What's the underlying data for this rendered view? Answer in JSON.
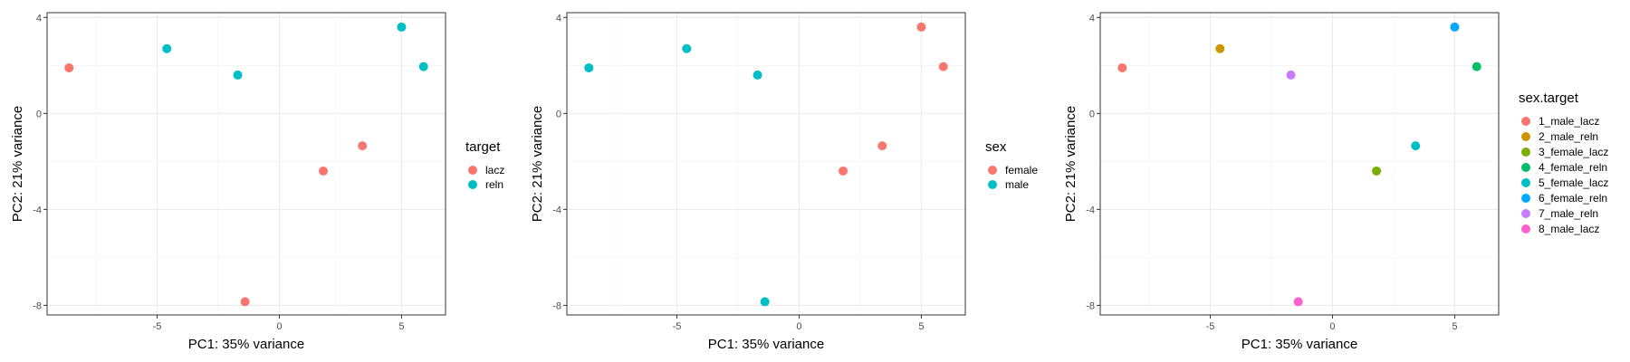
{
  "chart_data": [
    {
      "type": "scatter",
      "xlabel": "PC1: 35% variance",
      "ylabel": "PC2: 21% variance",
      "xlim": [
        -9.5,
        6.8
      ],
      "ylim": [
        -8.4,
        4.2
      ],
      "x_ticks": [
        -5,
        0,
        5
      ],
      "y_ticks": [
        -8,
        -4,
        0,
        4
      ],
      "grid": true,
      "legend_title": "target",
      "legend_placement": "right",
      "series": [
        {
          "name": "lacz",
          "color": "#F8766D",
          "points": [
            {
              "x": -8.6,
              "y": 1.9
            },
            {
              "x": 1.8,
              "y": -2.4
            },
            {
              "x": 3.4,
              "y": -1.35
            },
            {
              "x": -1.4,
              "y": -7.85
            }
          ]
        },
        {
          "name": "reln",
          "color": "#00BFC4",
          "points": [
            {
              "x": -4.6,
              "y": 2.7
            },
            {
              "x": -1.7,
              "y": 1.6
            },
            {
              "x": 5.0,
              "y": 3.6
            },
            {
              "x": 5.9,
              "y": 1.95
            }
          ]
        }
      ]
    },
    {
      "type": "scatter",
      "xlabel": "PC1: 35% variance",
      "ylabel": "PC2: 21% variance",
      "xlim": [
        -9.5,
        6.8
      ],
      "ylim": [
        -8.4,
        4.2
      ],
      "x_ticks": [
        -5,
        0,
        5
      ],
      "y_ticks": [
        -8,
        -4,
        0,
        4
      ],
      "grid": true,
      "legend_title": "sex",
      "legend_placement": "right",
      "series": [
        {
          "name": "female",
          "color": "#F8766D",
          "points": [
            {
              "x": 1.8,
              "y": -2.4
            },
            {
              "x": 3.4,
              "y": -1.35
            },
            {
              "x": 5.0,
              "y": 3.6
            },
            {
              "x": 5.9,
              "y": 1.95
            }
          ]
        },
        {
          "name": "male",
          "color": "#00BFC4",
          "points": [
            {
              "x": -8.6,
              "y": 1.9
            },
            {
              "x": -4.6,
              "y": 2.7
            },
            {
              "x": -1.7,
              "y": 1.6
            },
            {
              "x": -1.4,
              "y": -7.85
            }
          ]
        }
      ]
    },
    {
      "type": "scatter",
      "xlabel": "PC1: 35% variance",
      "ylabel": "PC2: 21% variance",
      "xlim": [
        -9.5,
        6.8
      ],
      "ylim": [
        -8.4,
        4.2
      ],
      "x_ticks": [
        -5,
        0,
        5
      ],
      "y_ticks": [
        -8,
        -4,
        0,
        4
      ],
      "grid": true,
      "legend_title": "sex.target",
      "legend_placement": "right",
      "series": [
        {
          "name": "1_male_lacz",
          "color": "#F8766D",
          "points": [
            {
              "x": -8.6,
              "y": 1.9
            }
          ]
        },
        {
          "name": "2_male_reln",
          "color": "#CD9600",
          "points": [
            {
              "x": -4.6,
              "y": 2.7
            }
          ]
        },
        {
          "name": "3_female_lacz",
          "color": "#7CAE00",
          "points": [
            {
              "x": 1.8,
              "y": -2.4
            }
          ]
        },
        {
          "name": "4_female_reln",
          "color": "#00BE67",
          "points": [
            {
              "x": 5.9,
              "y": 1.95
            }
          ]
        },
        {
          "name": "5_female_lacz",
          "color": "#00BFC4",
          "points": [
            {
              "x": 3.4,
              "y": -1.35
            }
          ]
        },
        {
          "name": "6_female_reln",
          "color": "#00A9FF",
          "points": [
            {
              "x": 5.0,
              "y": 3.6
            }
          ]
        },
        {
          "name": "7_male_reln",
          "color": "#C77CFF",
          "points": [
            {
              "x": -1.7,
              "y": 1.6
            }
          ]
        },
        {
          "name": "8_male_lacz",
          "color": "#FF61CC",
          "points": [
            {
              "x": -1.4,
              "y": -7.85
            }
          ]
        }
      ]
    }
  ]
}
